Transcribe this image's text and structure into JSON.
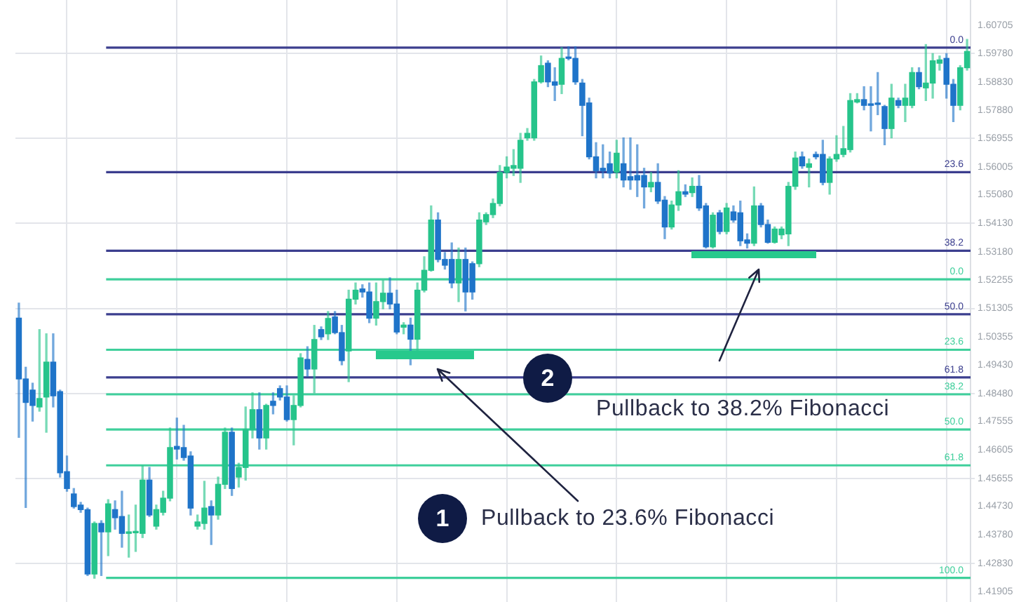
{
  "chart_data": {
    "type": "candlestick",
    "categories": [
      null,
      null,
      null,
      null,
      null,
      null,
      null,
      null,
      null,
      null,
      null,
      null,
      null,
      null,
      null,
      null,
      null,
      null,
      null,
      null,
      null,
      null,
      null,
      null,
      null,
      null,
      null,
      null,
      null,
      null,
      null,
      null,
      null,
      null,
      null,
      null,
      null,
      null,
      null,
      null,
      null,
      null,
      null,
      null,
      null,
      null,
      null,
      null,
      null,
      null,
      null,
      null,
      null,
      null,
      null,
      null,
      null,
      null,
      null,
      null,
      null,
      null,
      null,
      null,
      null,
      null,
      null,
      null,
      null,
      null,
      null,
      null,
      null,
      null,
      null,
      null,
      null,
      null,
      null,
      null,
      null,
      null,
      null,
      null,
      null,
      null,
      null,
      null,
      null,
      null,
      null,
      null,
      null,
      null,
      null,
      null,
      null,
      null,
      null,
      null,
      null,
      null,
      null,
      null,
      null,
      null,
      null,
      null,
      null,
      null,
      null,
      null,
      null,
      null,
      null,
      null,
      null,
      null,
      null,
      null,
      null,
      null,
      null,
      null,
      null,
      null,
      null,
      null,
      null,
      null,
      null,
      null,
      null,
      null,
      null,
      null,
      null,
      null,
      null
    ],
    "ohlc": [
      [
        1.5098,
        1.5148,
        1.4702,
        1.4896
      ],
      [
        1.4896,
        1.4935,
        1.4469,
        1.4818
      ],
      [
        1.4859,
        1.4882,
        1.4756,
        1.4808
      ],
      [
        1.4803,
        1.506,
        1.4789,
        1.4831
      ],
      [
        1.4836,
        1.5046,
        1.4719,
        1.4952
      ],
      [
        1.4952,
        1.5046,
        1.4803,
        1.484
      ],
      [
        1.4854,
        1.4859,
        1.457,
        1.4584
      ],
      [
        1.4588,
        1.464,
        1.4523,
        1.4532
      ],
      [
        1.4514,
        1.4532,
        1.4467,
        1.4472
      ],
      [
        1.4477,
        1.4486,
        1.4453,
        1.4462
      ],
      [
        1.4462,
        1.4467,
        1.4243,
        1.4248
      ],
      [
        1.4248,
        1.4421,
        1.4234,
        1.4416
      ],
      [
        1.4416,
        1.4425,
        1.4243,
        1.4388
      ],
      [
        1.4388,
        1.4495,
        1.4309,
        1.4481
      ],
      [
        1.4462,
        1.4491,
        1.4397,
        1.4435
      ],
      [
        1.4439,
        1.4523,
        1.4337,
        1.4383
      ],
      [
        1.4383,
        1.4444,
        1.4304,
        1.4388
      ],
      [
        1.4385,
        1.4477,
        1.4323,
        1.4388
      ],
      [
        1.4383,
        1.4607,
        1.4369,
        1.456
      ],
      [
        1.456,
        1.4602,
        1.4439,
        1.4444
      ],
      [
        1.4407,
        1.4477,
        1.4397,
        1.4462
      ],
      [
        1.4453,
        1.4523,
        1.4444,
        1.45
      ],
      [
        1.45,
        1.4733,
        1.4491,
        1.4668
      ],
      [
        1.4672,
        1.4766,
        1.463,
        1.4663
      ],
      [
        1.4668,
        1.4742,
        1.4626,
        1.4635
      ],
      [
        1.464,
        1.4654,
        1.4444,
        1.4467
      ],
      [
        1.4407,
        1.4444,
        1.4397,
        1.4421
      ],
      [
        1.4416,
        1.4556,
        1.4397,
        1.4467
      ],
      [
        1.4472,
        1.4491,
        1.4346,
        1.4444
      ],
      [
        1.4444,
        1.457,
        1.443,
        1.4546
      ],
      [
        1.4546,
        1.4733,
        1.4532,
        1.4719
      ],
      [
        1.4719,
        1.4733,
        1.4509,
        1.4532
      ],
      [
        1.457,
        1.4616,
        1.4537,
        1.4602
      ],
      [
        1.4602,
        1.4803,
        1.456,
        1.4728
      ],
      [
        1.4728,
        1.485,
        1.47,
        1.4794
      ],
      [
        1.4794,
        1.485,
        1.4663,
        1.47
      ],
      [
        1.47,
        1.4812,
        1.4663,
        1.4808
      ],
      [
        1.4822,
        1.485,
        1.478,
        1.4808
      ],
      [
        1.4864,
        1.4873,
        1.4826,
        1.4836
      ],
      [
        1.4836,
        1.4873,
        1.4756,
        1.4761
      ],
      [
        1.4761,
        1.484,
        1.4677,
        1.4808
      ],
      [
        1.4808,
        1.498,
        1.4803,
        1.4966
      ],
      [
        1.4961,
        1.5003,
        1.4905,
        1.4929
      ],
      [
        1.4929,
        1.5074,
        1.485,
        1.5027
      ],
      [
        1.506,
        1.5069,
        1.5027,
        1.5036
      ],
      [
        1.5046,
        1.512,
        1.5027,
        1.5097
      ],
      [
        1.5102,
        1.512,
        1.5046,
        1.505
      ],
      [
        1.505,
        1.5074,
        1.4943,
        1.4957
      ],
      [
        1.4989,
        1.5191,
        1.4887,
        1.5161
      ],
      [
        1.5161,
        1.5215,
        1.5145,
        1.5191
      ],
      [
        1.5195,
        1.5209,
        1.5168,
        1.5185
      ],
      [
        1.5185,
        1.5215,
        1.5083,
        1.5098
      ],
      [
        1.5098,
        1.5215,
        1.5075,
        1.5153
      ],
      [
        1.5153,
        1.5223,
        1.5129,
        1.5181
      ],
      [
        1.5181,
        1.5232,
        1.5129,
        1.5145
      ],
      [
        1.5145,
        1.5191,
        1.5046,
        1.5052
      ],
      [
        1.5068,
        1.5083,
        1.5046,
        1.5075
      ],
      [
        1.5075,
        1.5098,
        1.4943,
        1.5028
      ],
      [
        1.5028,
        1.5215,
        1.4989,
        1.5191
      ],
      [
        1.5191,
        1.5302,
        1.5185,
        1.5257
      ],
      [
        1.5257,
        1.5471,
        1.5254,
        1.5424
      ],
      [
        1.5424,
        1.5448,
        1.5285,
        1.5293
      ],
      [
        1.5293,
        1.5316,
        1.5261,
        1.5274
      ],
      [
        1.5293,
        1.5348,
        1.5199,
        1.5215
      ],
      [
        1.5215,
        1.5331,
        1.5153,
        1.5293
      ],
      [
        1.5293,
        1.5331,
        1.5122,
        1.5185
      ],
      [
        1.5279,
        1.5285,
        1.5161,
        1.5185
      ],
      [
        1.5279,
        1.5448,
        1.5269,
        1.5424
      ],
      [
        1.5418,
        1.5448,
        1.5409,
        1.5442
      ],
      [
        1.5442,
        1.5494,
        1.5432,
        1.5479
      ],
      [
        1.5479,
        1.5605,
        1.5471,
        1.5582
      ],
      [
        1.5582,
        1.5634,
        1.5564,
        1.56
      ],
      [
        1.5596,
        1.5658,
        1.5572,
        1.5605
      ],
      [
        1.5596,
        1.5712,
        1.5549,
        1.5689
      ],
      [
        1.5697,
        1.5728,
        1.5689,
        1.5712
      ],
      [
        1.5697,
        1.5891,
        1.5689,
        1.5883
      ],
      [
        1.5883,
        1.5969,
        1.5879,
        1.5937
      ],
      [
        1.5945,
        1.5953,
        1.5867,
        1.5883
      ],
      [
        1.5883,
        1.593,
        1.5821,
        1.5872
      ],
      [
        1.5875,
        1.5997,
        1.5844,
        1.5961
      ],
      [
        1.5965,
        1.6,
        1.5956,
        1.5961
      ],
      [
        1.5961,
        1.6,
        1.5875,
        1.5883
      ],
      [
        1.5879,
        1.5891,
        1.5704,
        1.5805
      ],
      [
        1.5813,
        1.5829,
        1.5627,
        1.5634
      ],
      [
        1.5634,
        1.5681,
        1.5564,
        1.5588
      ],
      [
        1.5596,
        1.5674,
        1.5564,
        1.5588
      ],
      [
        1.5611,
        1.565,
        1.5564,
        1.558
      ],
      [
        1.5583,
        1.5689,
        1.5564,
        1.5646
      ],
      [
        1.5611,
        1.5697,
        1.5534,
        1.5557
      ],
      [
        1.5568,
        1.5697,
        1.5526,
        1.5557
      ],
      [
        1.5572,
        1.5674,
        1.5502,
        1.5557
      ],
      [
        1.5572,
        1.5596,
        1.5464,
        1.5534
      ],
      [
        1.5534,
        1.5582,
        1.5518,
        1.5549
      ],
      [
        1.5549,
        1.5611,
        1.5479,
        1.5487
      ],
      [
        1.549,
        1.5502,
        1.5362,
        1.5401
      ],
      [
        1.5401,
        1.5487,
        1.5394,
        1.5474
      ],
      [
        1.5474,
        1.5588,
        1.5456,
        1.5518
      ],
      [
        1.5518,
        1.5541,
        1.5502,
        1.551
      ],
      [
        1.5515,
        1.5564,
        1.5502,
        1.5536
      ],
      [
        1.5536,
        1.5572,
        1.5456,
        1.5464
      ],
      [
        1.5471,
        1.5479,
        1.5331,
        1.5335
      ],
      [
        1.5335,
        1.5448,
        1.5331,
        1.544
      ],
      [
        1.5448,
        1.5456,
        1.5378,
        1.5386
      ],
      [
        1.5386,
        1.5479,
        1.5378,
        1.5464
      ],
      [
        1.5451,
        1.5471,
        1.5417,
        1.5424
      ],
      [
        1.5448,
        1.5487,
        1.5339,
        1.5355
      ],
      [
        1.5358,
        1.5378,
        1.5331,
        1.5347
      ],
      [
        1.5347,
        1.5534,
        1.5339,
        1.5471
      ],
      [
        1.5471,
        1.5479,
        1.5401,
        1.5409
      ],
      [
        1.5409,
        1.5424,
        1.5347,
        1.535
      ],
      [
        1.535,
        1.5401,
        1.5347,
        1.5394
      ],
      [
        1.5375,
        1.5401,
        1.5362,
        1.5394
      ],
      [
        1.5378,
        1.5549,
        1.5339,
        1.5536
      ],
      [
        1.5536,
        1.565,
        1.5526,
        1.563
      ],
      [
        1.5634,
        1.565,
        1.5596,
        1.5604
      ],
      [
        1.5599,
        1.5627,
        1.5534,
        1.5611
      ],
      [
        1.5642,
        1.565,
        1.5627,
        1.5634
      ],
      [
        1.5642,
        1.5689,
        1.5541,
        1.5549
      ],
      [
        1.5549,
        1.5634,
        1.551,
        1.5627
      ],
      [
        1.5627,
        1.5704,
        1.5619,
        1.5642
      ],
      [
        1.5642,
        1.5735,
        1.5634,
        1.5661
      ],
      [
        1.5658,
        1.5844,
        1.565,
        1.5821
      ],
      [
        1.5816,
        1.5844,
        1.5813,
        1.5824
      ],
      [
        1.5824,
        1.5867,
        1.579,
        1.5805
      ],
      [
        1.581,
        1.5867,
        1.572,
        1.5805
      ],
      [
        1.581,
        1.5914,
        1.5774,
        1.5808
      ],
      [
        1.5801,
        1.5805,
        1.5674,
        1.5728
      ],
      [
        1.5728,
        1.5875,
        1.5697,
        1.5829
      ],
      [
        1.5821,
        1.5829,
        1.5797,
        1.5805
      ],
      [
        1.5805,
        1.5875,
        1.5751,
        1.5829
      ],
      [
        1.5805,
        1.593,
        1.5797,
        1.5914
      ],
      [
        1.5914,
        1.593,
        1.586,
        1.5867
      ],
      [
        1.5863,
        1.6007,
        1.5821,
        1.5879
      ],
      [
        1.5879,
        1.5977,
        1.5829,
        1.5953
      ],
      [
        1.5945,
        1.5969,
        1.5922,
        1.5956
      ],
      [
        1.5961,
        1.5977,
        1.5829,
        1.5875
      ],
      [
        1.5875,
        1.5891,
        1.5751,
        1.5805
      ],
      [
        1.5805,
        1.5937,
        1.579,
        1.593
      ],
      [
        1.593,
        1.6024,
        1.5922,
        1.5984
      ]
    ],
    "colors": [
      "#1f74c9",
      "#1f74c9",
      "#1f74c9",
      "#26c48b",
      "#26c48b",
      "#1f74c9",
      "#1f74c9",
      "#1f74c9",
      "#1f74c9",
      "#1f74c9",
      "#1f74c9",
      "#26c48b",
      "#1f74c9",
      "#26c48b",
      "#1f74c9",
      "#1f74c9",
      "#26c48b",
      "#26c48b",
      "#26c48b",
      "#1f74c9",
      "#26c48b",
      "#26c48b",
      "#26c48b",
      "#1f74c9",
      "#1f74c9",
      "#1f74c9",
      "#26c48b",
      "#26c48b",
      "#1f74c9",
      "#26c48b",
      "#26c48b",
      "#1f74c9",
      "#26c48b",
      "#26c48b",
      "#26c48b",
      "#1f74c9",
      "#26c48b",
      "#1f74c9",
      "#1f74c9",
      "#1f74c9",
      "#26c48b",
      "#26c48b",
      "#1f74c9",
      "#26c48b",
      "#1f74c9",
      "#26c48b",
      "#1f74c9",
      "#1f74c9",
      "#26c48b",
      "#26c48b",
      "#1f74c9",
      "#1f74c9",
      "#26c48b",
      "#26c48b",
      "#1f74c9",
      "#1f74c9",
      "#26c48b",
      "#1f74c9",
      "#26c48b",
      "#26c48b",
      "#26c48b",
      "#1f74c9",
      "#1f74c9",
      "#1f74c9",
      "#26c48b",
      "#1f74c9",
      "#1f74c9",
      "#26c48b",
      "#26c48b",
      "#26c48b",
      "#26c48b",
      "#26c48b",
      "#26c48b",
      "#26c48b",
      "#26c48b",
      "#26c48b",
      "#26c48b",
      "#1f74c9",
      "#1f74c9",
      "#26c48b",
      "#1f74c9",
      "#1f74c9",
      "#1f74c9",
      "#1f74c9",
      "#1f74c9",
      "#1f74c9",
      "#1f74c9",
      "#26c48b",
      "#1f74c9",
      "#1f74c9",
      "#1f74c9",
      "#1f74c9",
      "#26c48b",
      "#1f74c9",
      "#1f74c9",
      "#26c48b",
      "#26c48b",
      "#1f74c9",
      "#26c48b",
      "#1f74c9",
      "#1f74c9",
      "#26c48b",
      "#1f74c9",
      "#26c48b",
      "#1f74c9",
      "#1f74c9",
      "#1f74c9",
      "#26c48b",
      "#1f74c9",
      "#1f74c9",
      "#26c48b",
      "#26c48b",
      "#26c48b",
      "#26c48b",
      "#1f74c9",
      "#26c48b",
      "#1f74c9",
      "#1f74c9",
      "#26c48b",
      "#26c48b",
      "#26c48b",
      "#26c48b",
      "#26c48b",
      "#1f74c9",
      "#1f74c9",
      "#1f74c9",
      "#1f74c9",
      "#26c48b",
      "#1f74c9",
      "#26c48b",
      "#26c48b",
      "#1f74c9",
      "#26c48b",
      "#26c48b",
      "#26c48b",
      "#1f74c9",
      "#1f74c9",
      "#26c48b",
      "#26c48b"
    ],
    "ylim": [
      1.4155,
      1.6155
    ],
    "yticks": [
      1.41905,
      {
        "value": 1.4283,
        "label": "1.42830"
      },
      {
        "value": 1.4378,
        "label": "1.43780"
      },
      {
        "value": 1.4473,
        "label": "1.44730"
      },
      1.45655,
      1.46605,
      1.47555,
      {
        "value": 1.4848,
        "label": "1.48480"
      },
      {
        "value": 1.4943,
        "label": "1.49430"
      },
      1.50355,
      1.51305,
      1.52255,
      {
        "value": 1.5318,
        "label": "1.53180"
      },
      {
        "value": 1.5413,
        "label": "1.54130"
      },
      {
        "value": 1.5508,
        "label": "1.55080"
      },
      1.56005,
      1.56955,
      {
        "value": 1.5788,
        "label": "1.57880"
      },
      {
        "value": 1.5883,
        "label": "1.58830"
      },
      {
        "value": 1.5978,
        "label": "1.59780"
      },
      1.60705
    ],
    "tick_labels": "y",
    "grid": true,
    "ref_lines": [
      {
        "axis": "y",
        "value": 1.5997,
        "color": "#3b3e8e"
      },
      {
        "axis": "y",
        "value": 1.5583,
        "color": "#3b3e8e"
      },
      {
        "axis": "y",
        "value": 1.5322,
        "color": "#3b3e8e"
      },
      {
        "axis": "y",
        "value": 1.5111,
        "color": "#3b3e8e"
      },
      {
        "axis": "y",
        "value": 1.4901,
        "color": "#3b3e8e"
      },
      {
        "axis": "y",
        "value": 1.5227,
        "color": "#3fcf9b"
      },
      {
        "axis": "y",
        "value": 1.4993,
        "color": "#3fcf9b"
      },
      {
        "axis": "y",
        "value": 1.4845,
        "color": "#3fcf9b"
      },
      {
        "axis": "y",
        "value": 1.4728,
        "color": "#3fcf9b"
      },
      {
        "axis": "y",
        "value": 1.4609,
        "color": "#3fcf9b"
      },
      {
        "axis": "y",
        "value": 1.4235,
        "color": "#3fcf9b"
      }
    ],
    "annotations": [
      {
        "text": "0.0",
        "y": 1.5997
      },
      {
        "text": "23.6",
        "y": 1.5583
      },
      {
        "text": "38.2",
        "y": 1.5322
      },
      {
        "text": "50.0",
        "y": 1.5111
      },
      {
        "text": "61.8",
        "y": 1.4901
      },
      {
        "text": "0.0",
        "y": 1.5227
      },
      {
        "text": "23.6",
        "y": 1.4993
      },
      {
        "text": "38.2",
        "y": 1.4845
      },
      {
        "text": "50.0",
        "y": 1.4728
      },
      {
        "text": "61.8",
        "y": 1.4609
      },
      {
        "text": "100.0",
        "y": 1.4235
      },
      "1",
      "Pullback to 23.6% Fibonacci",
      "2",
      "Pullback to 38.2% Fibonacci"
    ]
  }
}
